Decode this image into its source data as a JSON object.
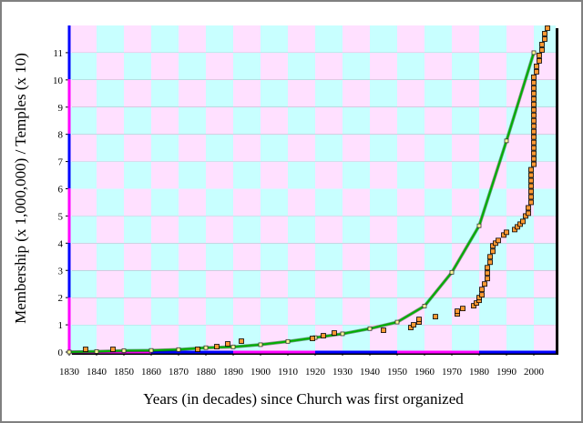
{
  "chart_data": {
    "type": "combo",
    "x_label": "Years (in decades) since Church was first organized",
    "y_label": "Membership (x 1,000,000) / Temples (x 10)",
    "xlim": [
      1830,
      2008
    ],
    "xticks": [
      1830,
      1840,
      1850,
      1860,
      1870,
      1880,
      1890,
      1900,
      1910,
      1920,
      1930,
      1940,
      1950,
      1960,
      1970,
      1980,
      1990,
      2000
    ],
    "ylim": [
      0,
      12
    ],
    "yticks": [
      0,
      1,
      2,
      3,
      4,
      5,
      6,
      7,
      8,
      9,
      10,
      11
    ],
    "series": [
      {
        "type": "line",
        "color": "#00b000",
        "x": [
          1830,
          1840,
          1850,
          1860,
          1870,
          1880,
          1890,
          1900,
          1910,
          1920,
          1930,
          1940,
          1950,
          1960,
          1970,
          1980,
          1990,
          2000
        ],
        "values": [
          0,
          0.02,
          0.05,
          0.06,
          0.09,
          0.16,
          0.19,
          0.27,
          0.39,
          0.53,
          0.67,
          0.86,
          1.1,
          1.69,
          2.93,
          4.64,
          7.76,
          11.0
        ]
      },
      {
        "type": "scatter",
        "color": "#ff9933",
        "x": [
          1836,
          1846,
          1877,
          1884,
          1888,
          1893,
          1919,
          1923,
          1927,
          1945,
          1955,
          1956,
          1958,
          1958,
          1964,
          1972,
          1972,
          1974,
          1978,
          1979,
          1980,
          1980,
          1981,
          1981,
          1982,
          1983,
          1983,
          1983,
          1984,
          1984,
          1985,
          1985,
          1986,
          1987,
          1989,
          1990,
          1993,
          1994,
          1995,
          1996,
          1997,
          1998,
          1998,
          1999,
          1999,
          1999,
          1999,
          1999,
          1999,
          1999,
          2000,
          2000,
          2000,
          2000,
          2000,
          2000,
          2000,
          2000,
          2000,
          2000,
          2000,
          2000,
          2000,
          2000,
          2000,
          2000,
          2000,
          2001,
          2001,
          2002,
          2002,
          2003,
          2003,
          2004,
          2004,
          2005
        ],
        "values": [
          0.1,
          0.1,
          0.1,
          0.2,
          0.3,
          0.4,
          0.5,
          0.6,
          0.7,
          0.8,
          0.9,
          1.0,
          1.1,
          1.2,
          1.3,
          1.4,
          1.5,
          1.6,
          1.7,
          1.8,
          1.9,
          2.0,
          2.1,
          2.3,
          2.5,
          2.7,
          2.9,
          3.1,
          3.3,
          3.5,
          3.7,
          3.9,
          4.0,
          4.1,
          4.3,
          4.4,
          4.5,
          4.6,
          4.7,
          4.8,
          5.0,
          5.1,
          5.3,
          5.5,
          5.7,
          5.9,
          6.1,
          6.3,
          6.5,
          6.7,
          6.9,
          7.1,
          7.3,
          7.5,
          7.7,
          7.9,
          8.1,
          8.3,
          8.5,
          8.7,
          8.9,
          9.1,
          9.3,
          9.5,
          9.7,
          9.9,
          10.1,
          10.3,
          10.5,
          10.7,
          10.9,
          11.1,
          11.3,
          11.5,
          11.7,
          11.9
        ]
      }
    ]
  }
}
